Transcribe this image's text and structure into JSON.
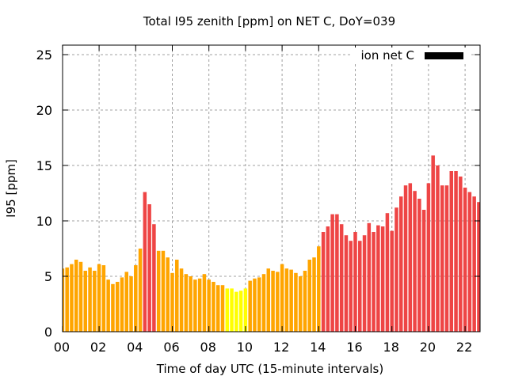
{
  "chart_data": {
    "type": "bar",
    "title": "Total I95 zenith [ppm] on NET C, DoY=039",
    "xlabel": "Time of day UTC (15-minute intervals)",
    "ylabel": "I95 [ppm]",
    "xlim": [
      0,
      22.75
    ],
    "ylim": [
      0,
      26
    ],
    "x_unit": "hours UTC",
    "bar_interval_hours": 0.25,
    "x_ticks": [
      0,
      2,
      4,
      6,
      8,
      10,
      12,
      14,
      16,
      18,
      20,
      22
    ],
    "x_tick_labels": [
      "00",
      "02",
      "04",
      "06",
      "08",
      "10",
      "12",
      "14",
      "16",
      "18",
      "20",
      "22"
    ],
    "y_ticks": [
      0,
      5,
      10,
      15,
      20,
      25
    ],
    "y_tick_labels": [
      "0",
      "5",
      "10",
      "15",
      "20",
      "25"
    ],
    "grid": true,
    "legend": {
      "label": "ion net C",
      "color": "#000000",
      "placement": "top-right"
    },
    "class_colors": {
      "o": "#FFA500",
      "y": "#FFFF00",
      "r": "#EE4545"
    },
    "values": [
      5.7,
      5.8,
      6.1,
      6.5,
      6.3,
      5.5,
      5.8,
      5.5,
      6.1,
      6.0,
      4.7,
      4.3,
      4.5,
      4.9,
      5.4,
      5.0,
      6.0,
      7.5,
      12.6,
      11.5,
      9.7,
      7.3,
      7.3,
      6.7,
      5.3,
      6.5,
      5.7,
      5.2,
      5.0,
      4.7,
      4.8,
      5.2,
      4.7,
      4.5,
      4.2,
      4.2,
      3.9,
      3.9,
      3.6,
      3.7,
      3.9,
      4.6,
      4.8,
      4.9,
      5.2,
      5.7,
      5.5,
      5.4,
      6.1,
      5.7,
      5.6,
      5.3,
      5.0,
      5.5,
      6.5,
      6.7,
      7.7,
      9.0,
      9.5,
      10.6,
      10.6,
      9.7,
      8.7,
      8.2,
      9.0,
      8.2,
      8.7,
      9.8,
      9.0,
      9.6,
      9.5,
      10.7,
      9.1,
      11.2,
      12.2,
      13.2,
      13.4,
      12.7,
      12.0,
      11.0,
      13.4,
      15.9,
      15.0,
      13.2,
      13.2,
      14.5,
      14.5,
      14.0,
      13.0,
      12.6,
      12.2,
      11.7
    ],
    "classes": [
      "o",
      "o",
      "o",
      "o",
      "o",
      "o",
      "o",
      "o",
      "o",
      "o",
      "o",
      "o",
      "o",
      "o",
      "o",
      "o",
      "o",
      "o",
      "r",
      "r",
      "r",
      "o",
      "o",
      "o",
      "o",
      "o",
      "o",
      "o",
      "o",
      "o",
      "o",
      "o",
      "o",
      "o",
      "o",
      "o",
      "y",
      "y",
      "y",
      "y",
      "y",
      "o",
      "o",
      "o",
      "o",
      "o",
      "o",
      "o",
      "o",
      "o",
      "o",
      "o",
      "o",
      "o",
      "o",
      "o",
      "o",
      "r",
      "r",
      "r",
      "r",
      "r",
      "r",
      "r",
      "r",
      "r",
      "r",
      "r",
      "r",
      "r",
      "r",
      "r",
      "r",
      "r",
      "r",
      "r",
      "r",
      "r",
      "r",
      "r",
      "r",
      "r",
      "r",
      "r",
      "r",
      "r",
      "r",
      "r",
      "r",
      "r",
      "r",
      "r"
    ]
  }
}
